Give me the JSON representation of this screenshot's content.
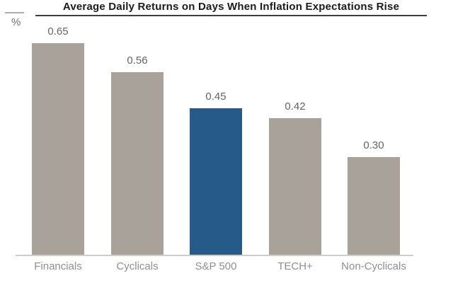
{
  "header": {
    "unit_label": "%",
    "title": "Average Daily Returns on Days When Inflation Expectations Rise"
  },
  "chart_data": {
    "type": "bar",
    "title": "Average Daily Returns on Days When Inflation Expectations Rise",
    "xlabel": "",
    "ylabel": "%",
    "categories": [
      "Financials",
      "Cyclicals",
      "S&P 500",
      "TECH+",
      "Non-Cyclicals"
    ],
    "values": [
      0.65,
      0.56,
      0.45,
      0.42,
      0.3
    ],
    "value_labels": [
      "0.65",
      "0.56",
      "0.45",
      "0.42",
      "0.30"
    ],
    "highlight_index": 2,
    "highlighted_category": "S&P 500",
    "ylim": [
      0,
      0.7
    ],
    "grid": false,
    "legend_position": "none",
    "colors": {
      "bar_default": "#a8a29b",
      "bar_highlight": "#255a89",
      "value_label": "#646464",
      "category_label": "#8f8f8f",
      "axis_line": "#cfccc9",
      "title_text": "#1b1b1b",
      "title_rule": "#3f3f3f"
    }
  }
}
